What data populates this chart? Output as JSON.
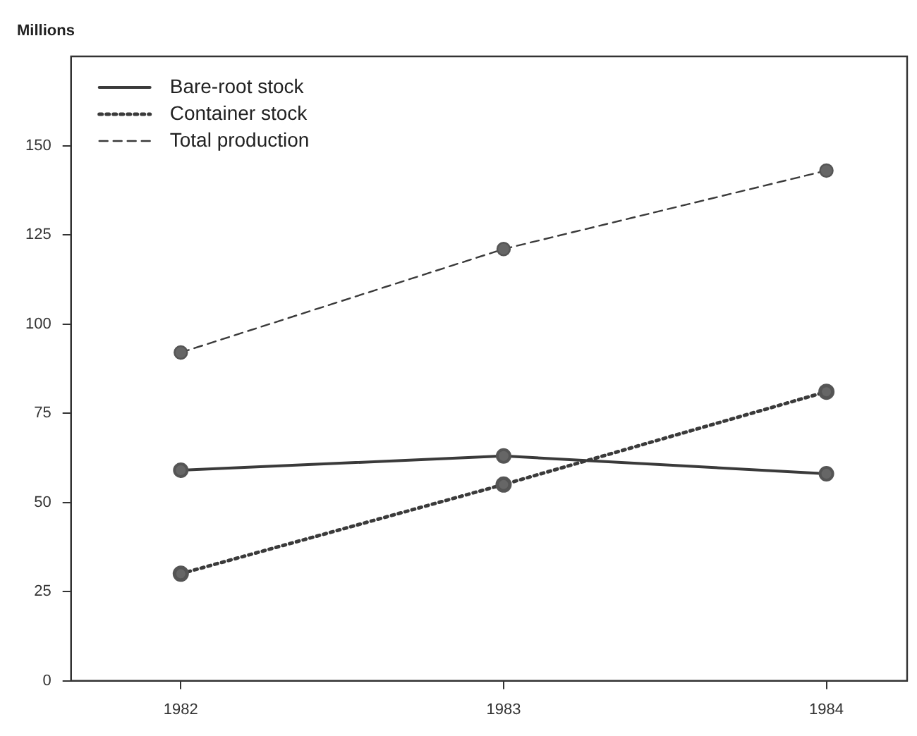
{
  "chart_data": {
    "type": "line",
    "ylabel": "Millions",
    "x": [
      1982,
      1983,
      1984
    ],
    "xlim": [
      1981.66,
      1984.25
    ],
    "xticks": [
      1982,
      1983,
      1984
    ],
    "ylim": [
      0,
      175
    ],
    "yticks": [
      0,
      25,
      50,
      75,
      100,
      125,
      150
    ],
    "grid": false,
    "legend": "top left",
    "marker": "circle",
    "series": [
      {
        "name": "Bare-root stock",
        "color": "#3a3a3a",
        "values": [
          59,
          63,
          58
        ],
        "line_style": "solid"
      },
      {
        "name": "Container stock",
        "color": "#3a3a3a",
        "values": [
          30,
          55,
          81
        ],
        "line_style": "dotted"
      },
      {
        "name": "Total production",
        "color": "#3a3a3a",
        "values": [
          92,
          121,
          143
        ],
        "line_style": "dashed"
      }
    ]
  }
}
